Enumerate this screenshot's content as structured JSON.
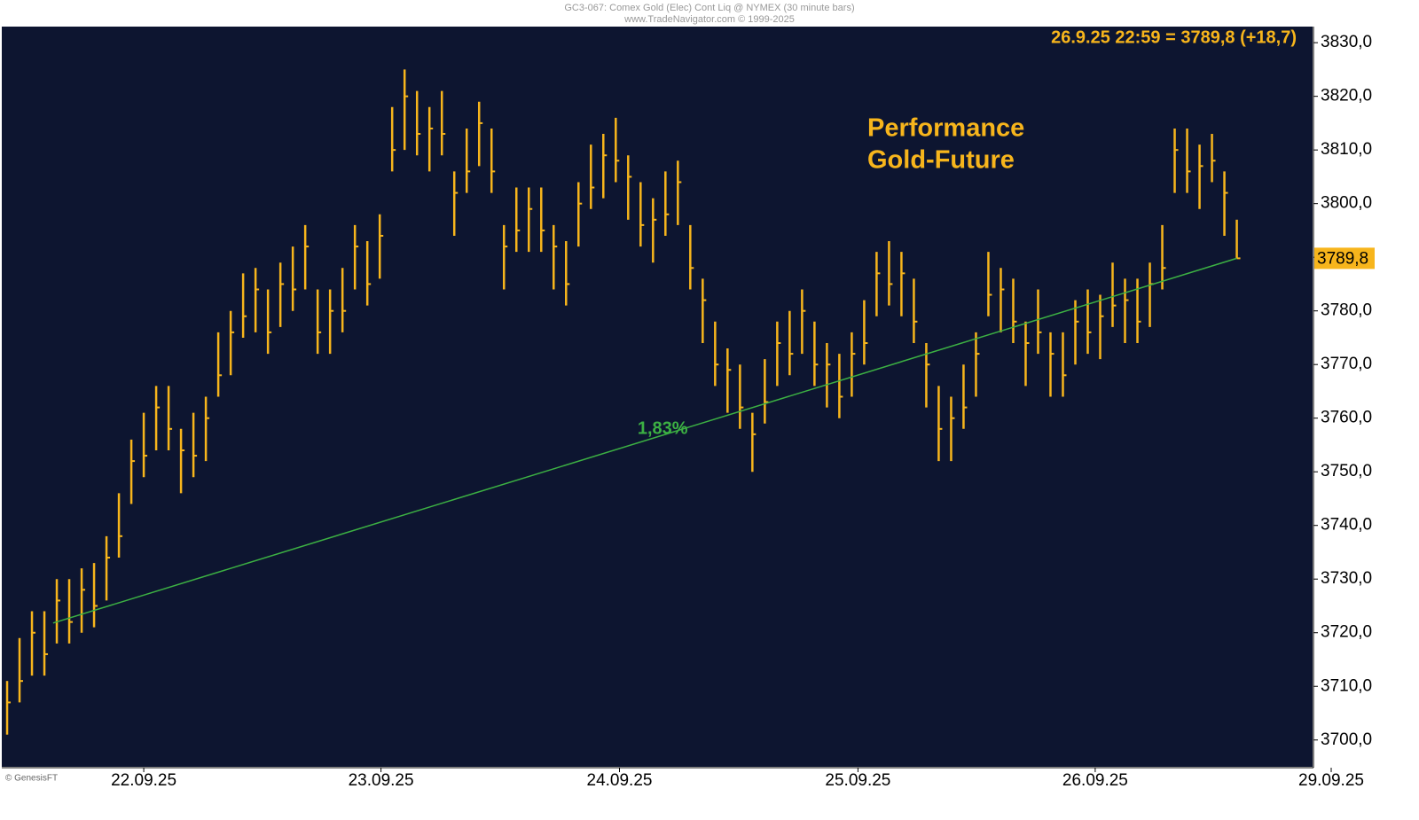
{
  "chart_data": {
    "type": "ohlc",
    "title": "GC3-067: Comex Gold (Elec) Cont Liq @ NYMEX (30 minute bars)",
    "subtitle": "www.TradeNavigator.com © 1999-2025",
    "info": "26.9.25 22:59 = 3789,8 (+18,7)",
    "annotation": [
      "Performance",
      "Gold-Future"
    ],
    "copyright": "© GenesisFT",
    "color": "#f7b51c",
    "series": [
      {
        "high": [
          3711,
          3719,
          3724,
          3724,
          3730,
          3730,
          3732,
          3733,
          3738,
          3746,
          3756,
          3761,
          3766,
          3766,
          3758,
          3761,
          3764,
          3776,
          3780,
          3787,
          3788,
          3784,
          3789,
          3792,
          3796,
          3784,
          3784,
          3788,
          3796,
          3793,
          3798,
          3818,
          3825,
          3821,
          3818,
          3821,
          3806,
          3814,
          3819,
          3814,
          3796,
          3803,
          3803,
          3803,
          3796,
          3793,
          3804,
          3811,
          3813,
          3816,
          3809,
          3804,
          3801,
          3806,
          3808,
          3796,
          3786,
          3778,
          3773,
          3770,
          3761,
          3771,
          3778,
          3780,
          3784,
          3778,
          3774,
          3772,
          3776,
          3782,
          3791,
          3793,
          3791,
          3786,
          3774,
          3766,
          3764,
          3770,
          3776,
          3791,
          3788,
          3786,
          3778,
          3784,
          3776,
          3776,
          3782,
          3784,
          3783,
          3789,
          3786,
          3786,
          3789,
          3796,
          3814,
          3814,
          3811,
          3813,
          3806,
          3797
        ],
        "low": [
          3701,
          3707,
          3712,
          3712,
          3718,
          3718,
          3720,
          3721,
          3726,
          3734,
          3744,
          3749,
          3754,
          3754,
          3746,
          3749,
          3752,
          3764,
          3768,
          3775,
          3776,
          3772,
          3777,
          3780,
          3784,
          3772,
          3772,
          3776,
          3784,
          3781,
          3786,
          3806,
          3810,
          3809,
          3806,
          3809,
          3794,
          3802,
          3807,
          3802,
          3784,
          3791,
          3791,
          3791,
          3784,
          3781,
          3792,
          3799,
          3801,
          3804,
          3797,
          3792,
          3789,
          3794,
          3796,
          3784,
          3774,
          3766,
          3761,
          3758,
          3750,
          3759,
          3766,
          3768,
          3772,
          3766,
          3762,
          3760,
          3764,
          3770,
          3779,
          3781,
          3779,
          3774,
          3762,
          3752,
          3752,
          3758,
          3764,
          3779,
          3776,
          3774,
          3766,
          3772,
          3764,
          3764,
          3770,
          3772,
          3771,
          3777,
          3774,
          3774,
          3777,
          3784,
          3802,
          3802,
          3799,
          3804,
          3794,
          3789.8
        ],
        "close": [
          3707,
          3711,
          3720,
          3716,
          3726,
          3722,
          3728,
          3725,
          3734,
          3738,
          3752,
          3753,
          3762,
          3758,
          3754,
          3753,
          3760,
          3768,
          3776,
          3779,
          3784,
          3776,
          3785,
          3784,
          3792,
          3776,
          3780,
          3780,
          3792,
          3785,
          3794,
          3810,
          3820,
          3813,
          3814,
          3813,
          3802,
          3806,
          3815,
          3806,
          3792,
          3795,
          3799,
          3795,
          3792,
          3785,
          3800,
          3803,
          3809,
          3808,
          3805,
          3796,
          3797,
          3798,
          3804,
          3788,
          3782,
          3770,
          3769,
          3762,
          3757,
          3763,
          3774,
          3772,
          3780,
          3770,
          3770,
          3764,
          3772,
          3774,
          3787,
          3785,
          3787,
          3778,
          3770,
          3758,
          3760,
          3762,
          3772,
          3783,
          3784,
          3778,
          3774,
          3776,
          3772,
          3768,
          3778,
          3776,
          3779,
          3781,
          3782,
          3778,
          3785,
          3788,
          3810,
          3806,
          3807,
          3808,
          3802,
          3789.8
        ]
      }
    ],
    "last_label": {
      "value": 3789.8,
      "label": "3789,8"
    },
    "trendline": {
      "x": [
        3.7,
        99
      ],
      "y": [
        3721.8,
        3789.8
      ],
      "label": "1,83%",
      "color": "#3cb043"
    },
    "xlim": [
      -0.43,
      105.1
    ],
    "xticks": [
      {
        "value": 11.0,
        "label": "22.09.25"
      },
      {
        "value": 30.1,
        "label": "23.09.25"
      },
      {
        "value": 49.3,
        "label": "24.09.25"
      },
      {
        "value": 68.5,
        "label": "25.09.25"
      },
      {
        "value": 87.6,
        "label": "26.09.25"
      },
      {
        "value": 106.6,
        "label": "29.09.25"
      }
    ],
    "ylim": [
      3695,
      3833
    ],
    "yticks": [
      {
        "value": 3700,
        "label": "3700,0"
      },
      {
        "value": 3710,
        "label": "3710,0"
      },
      {
        "value": 3720,
        "label": "3720,0"
      },
      {
        "value": 3730,
        "label": "3730,0"
      },
      {
        "value": 3740,
        "label": "3740,0"
      },
      {
        "value": 3750,
        "label": "3750,0"
      },
      {
        "value": 3760,
        "label": "3760,0"
      },
      {
        "value": 3770,
        "label": "3770,0"
      },
      {
        "value": 3780,
        "label": "3780,0"
      },
      {
        "value": 3790,
        "label": "3790,0"
      },
      {
        "value": 3800,
        "label": "3800,0"
      },
      {
        "value": 3810,
        "label": "3810,0"
      },
      {
        "value": 3820,
        "label": "3820,0"
      },
      {
        "value": 3830,
        "label": "3830,0"
      }
    ]
  }
}
